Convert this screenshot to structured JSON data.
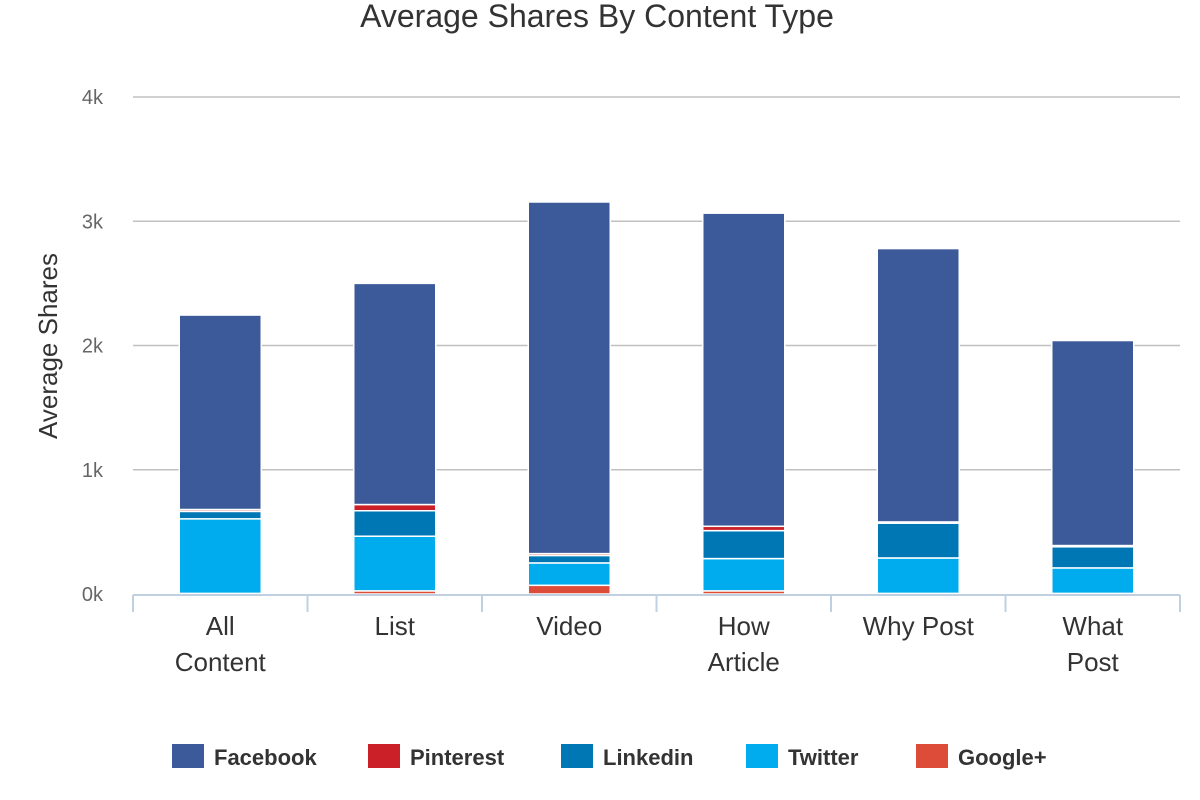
{
  "chart_data": {
    "type": "bar",
    "stacked": true,
    "title": "Average Shares By Content Type",
    "xlabel": "",
    "ylabel": "Average Shares",
    "ylim": [
      0,
      4000
    ],
    "yticks": [
      {
        "value": 0,
        "label": "0k"
      },
      {
        "value": 1000,
        "label": "1k"
      },
      {
        "value": 2000,
        "label": "2k"
      },
      {
        "value": 3000,
        "label": "3k"
      },
      {
        "value": 4000,
        "label": "4k"
      }
    ],
    "categories": [
      [
        "All",
        "Content"
      ],
      [
        "List"
      ],
      [
        "Video"
      ],
      [
        "How",
        "Article"
      ],
      [
        "Why Post"
      ],
      [
        "What",
        "Post"
      ]
    ],
    "grid": true,
    "legend_position": "bottom",
    "stack_order_bottom_to_top": [
      "Google+",
      "Twitter",
      "Linkedin",
      "Pinterest",
      "Facebook"
    ],
    "series": [
      {
        "name": "Facebook",
        "color": "#3c5a99",
        "values": [
          1565,
          1780,
          2830,
          2520,
          2200,
          1650
        ]
      },
      {
        "name": "Pinterest",
        "color": "#cb2027",
        "values": [
          15,
          50,
          15,
          35,
          10,
          10
        ]
      },
      {
        "name": "Linkedin",
        "color": "#0077b5",
        "values": [
          60,
          205,
          60,
          225,
          280,
          170
        ]
      },
      {
        "name": "Twitter",
        "color": "#00acee",
        "values": [
          600,
          440,
          180,
          260,
          285,
          205
        ]
      },
      {
        "name": "Google+",
        "color": "#dd4b39",
        "values": [
          5,
          25,
          70,
          25,
          5,
          5
        ]
      }
    ]
  }
}
